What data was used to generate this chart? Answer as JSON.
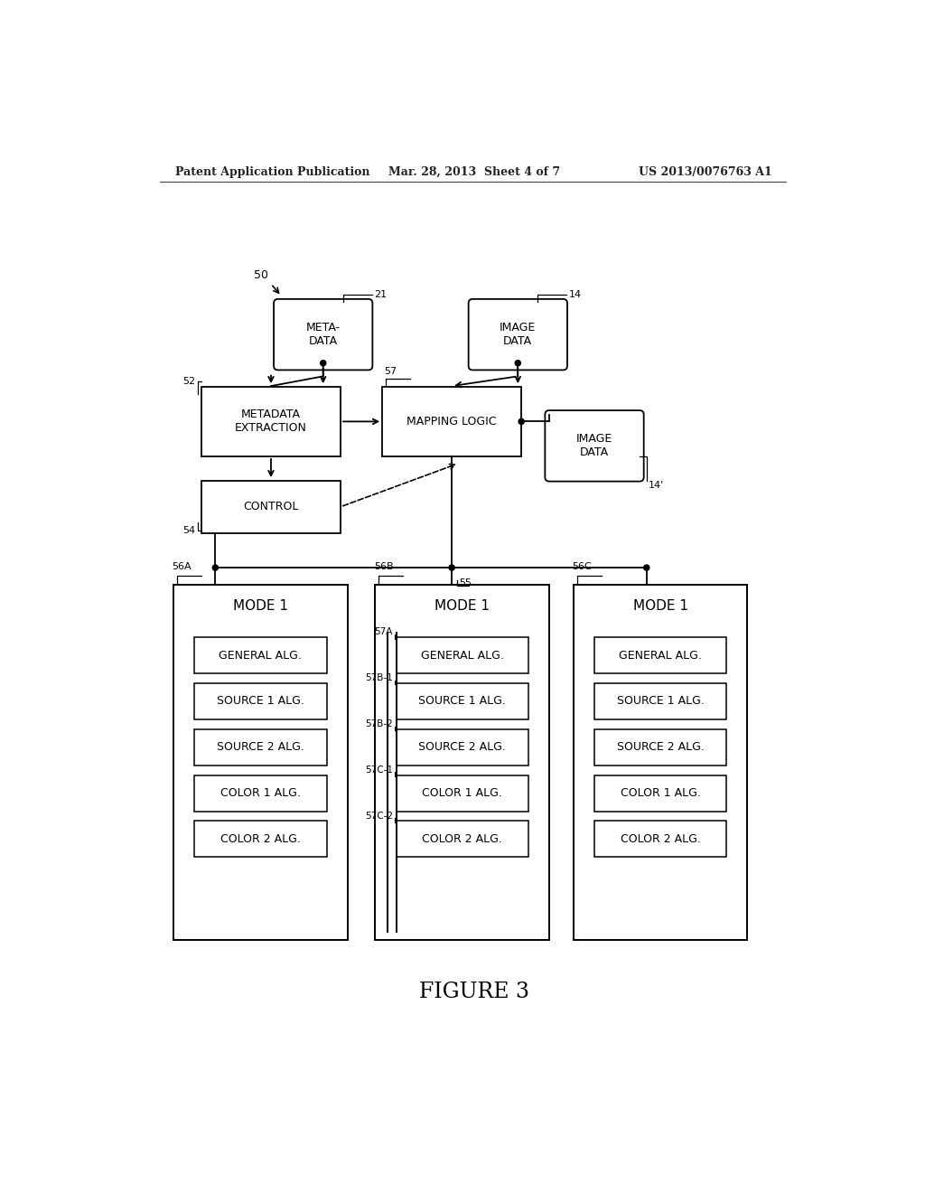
{
  "bg_color": "#ffffff",
  "header_left": "Patent Application Publication",
  "header_mid": "Mar. 28, 2013  Sheet 4 of 7",
  "header_right": "US 2013/0076763 A1",
  "figure_label": "FIGURE 3"
}
